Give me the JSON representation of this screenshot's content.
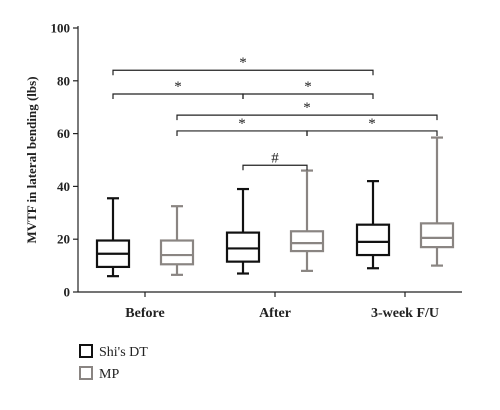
{
  "chart_data": {
    "type": "box",
    "ylabel": "MVTF in lateral bending (lbs)",
    "ylim": [
      0,
      100
    ],
    "yticks": [
      "0",
      "20",
      "40",
      "60",
      "80",
      "100"
    ],
    "categories": [
      "Before",
      "After",
      "3-week F/U"
    ],
    "series": [
      {
        "name": "Shi's DT",
        "color": "#111111",
        "boxes": [
          {
            "min": 6,
            "q1": 9.5,
            "median": 14.5,
            "q3": 19.5,
            "max": 35.5
          },
          {
            "min": 7,
            "q1": 11.5,
            "median": 16.5,
            "q3": 22.5,
            "max": 39
          },
          {
            "min": 9,
            "q1": 14,
            "median": 19,
            "q3": 25.5,
            "max": 42
          }
        ]
      },
      {
        "name": "MP",
        "color": "#8a8582",
        "boxes": [
          {
            "min": 6.5,
            "q1": 10.5,
            "median": 14,
            "q3": 19.5,
            "max": 32.5
          },
          {
            "min": 8,
            "q1": 15.5,
            "median": 18.5,
            "q3": 23,
            "max": 46
          },
          {
            "min": 10,
            "q1": 17,
            "median": 20.5,
            "q3": 26,
            "max": 58.5
          }
        ]
      }
    ],
    "significance": [
      {
        "from": [
          0,
          0
        ],
        "to": [
          2,
          0
        ],
        "y": 84,
        "label": "*"
      },
      {
        "from": [
          0,
          0
        ],
        "to": [
          1,
          0
        ],
        "y": 75,
        "label": "*"
      },
      {
        "from": [
          1,
          0
        ],
        "to": [
          2,
          0
        ],
        "y": 75,
        "label": "*"
      },
      {
        "from": [
          0,
          1
        ],
        "to": [
          2,
          1
        ],
        "y": 67,
        "label": "*"
      },
      {
        "from": [
          0,
          1
        ],
        "to": [
          1,
          1
        ],
        "y": 61,
        "label": "*"
      },
      {
        "from": [
          1,
          1
        ],
        "to": [
          2,
          1
        ],
        "y": 61,
        "label": "*"
      },
      {
        "from": [
          1,
          0
        ],
        "to": [
          1,
          1
        ],
        "y": 48,
        "label": "#"
      }
    ],
    "legend": [
      "Shi's DT",
      "MP"
    ],
    "legend_position": "bottom-left"
  }
}
